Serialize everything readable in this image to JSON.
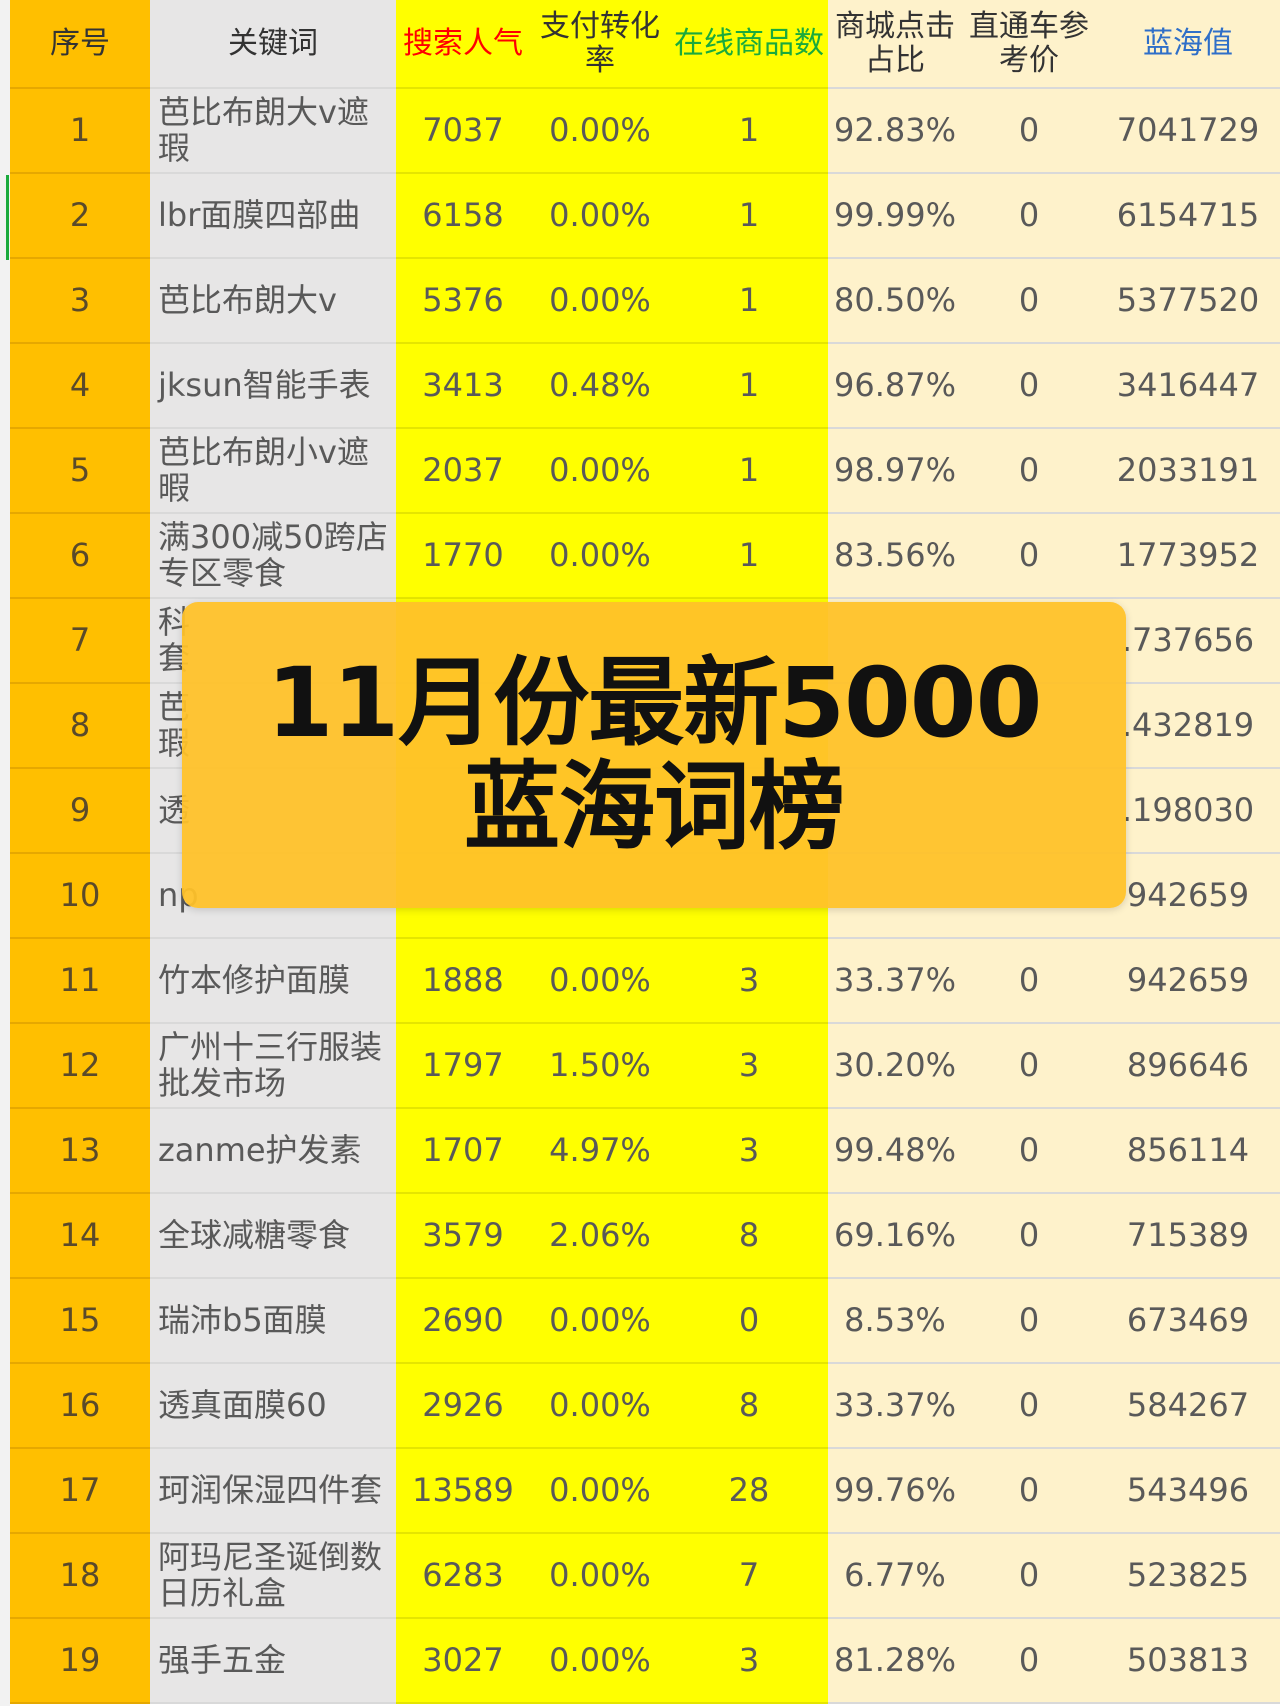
{
  "headers": {
    "seq": "序号",
    "keyword": "关键词",
    "popularity": "搜索人气",
    "conversion": "支付转化率",
    "items": "在线商品数",
    "mall_click": "商城点击占比",
    "ztc_price": "直通车参考价",
    "blue_value": "蓝海值"
  },
  "rows": [
    {
      "seq": "1",
      "keyword": "芭比布朗大v遮瑕",
      "popularity": "7037",
      "conversion": "0.00%",
      "items": "1",
      "mall_click": "92.83%",
      "ztc_price": "0",
      "blue_value": "7041729"
    },
    {
      "seq": "2",
      "keyword": "lbr面膜四部曲",
      "popularity": "6158",
      "conversion": "0.00%",
      "items": "1",
      "mall_click": "99.99%",
      "ztc_price": "0",
      "blue_value": "6154715"
    },
    {
      "seq": "3",
      "keyword": "芭比布朗大v",
      "popularity": "5376",
      "conversion": "0.00%",
      "items": "1",
      "mall_click": "80.50%",
      "ztc_price": "0",
      "blue_value": "5377520"
    },
    {
      "seq": "4",
      "keyword": "jksun智能手表",
      "popularity": "3413",
      "conversion": "0.48%",
      "items": "1",
      "mall_click": "96.87%",
      "ztc_price": "0",
      "blue_value": "3416447"
    },
    {
      "seq": "5",
      "keyword": "芭比布朗小v遮暇",
      "popularity": "2037",
      "conversion": "0.00%",
      "items": "1",
      "mall_click": "98.97%",
      "ztc_price": "0",
      "blue_value": "2033191"
    },
    {
      "seq": "6",
      "keyword": "满300减50跨店专区零食",
      "popularity": "1770",
      "conversion": "0.00%",
      "items": "1",
      "mall_click": "83.56%",
      "ztc_price": "0",
      "blue_value": "1773952"
    },
    {
      "seq": "7",
      "keyword": "科\n套",
      "popularity": "",
      "conversion": "",
      "items": "",
      "mall_click": "",
      "ztc_price": "",
      "blue_value": ".737656"
    },
    {
      "seq": "8",
      "keyword": "芭\n瑕",
      "popularity": "",
      "conversion": "",
      "items": "",
      "mall_click": "",
      "ztc_price": "",
      "blue_value": ".432819"
    },
    {
      "seq": "9",
      "keyword": "透",
      "popularity": "",
      "conversion": "",
      "items": "",
      "mall_click": "",
      "ztc_price": "",
      "blue_value": ".198030"
    },
    {
      "seq": "10",
      "keyword": "np",
      "popularity": "",
      "conversion": "",
      "items": "",
      "mall_click": "",
      "ztc_price": "",
      "blue_value": "942659"
    },
    {
      "seq": "11",
      "keyword": "竹本修护面膜",
      "popularity": "1888",
      "conversion": "0.00%",
      "items": "3",
      "mall_click": "33.37%",
      "ztc_price": "0",
      "blue_value": "942659"
    },
    {
      "seq": "12",
      "keyword": "广州十三行服装批发市场",
      "popularity": "1797",
      "conversion": "1.50%",
      "items": "3",
      "mall_click": "30.20%",
      "ztc_price": "0",
      "blue_value": "896646"
    },
    {
      "seq": "13",
      "keyword": "zanme护发素",
      "popularity": "1707",
      "conversion": "4.97%",
      "items": "3",
      "mall_click": "99.48%",
      "ztc_price": "0",
      "blue_value": "856114"
    },
    {
      "seq": "14",
      "keyword": "全球减糖零食",
      "popularity": "3579",
      "conversion": "2.06%",
      "items": "8",
      "mall_click": "69.16%",
      "ztc_price": "0",
      "blue_value": "715389"
    },
    {
      "seq": "15",
      "keyword": "瑞沛b5面膜",
      "popularity": "2690",
      "conversion": "0.00%",
      "items": "0",
      "mall_click": "8.53%",
      "ztc_price": "0",
      "blue_value": "673469"
    },
    {
      "seq": "16",
      "keyword": "透真面膜60",
      "popularity": "2926",
      "conversion": "0.00%",
      "items": "8",
      "mall_click": "33.37%",
      "ztc_price": "0",
      "blue_value": "584267"
    },
    {
      "seq": "17",
      "keyword": "珂润保湿四件套",
      "popularity": "13589",
      "conversion": "0.00%",
      "items": "28",
      "mall_click": "99.76%",
      "ztc_price": "0",
      "blue_value": "543496"
    },
    {
      "seq": "18",
      "keyword": "阿玛尼圣诞倒数日历礼盒",
      "popularity": "6283",
      "conversion": "0.00%",
      "items": "7",
      "mall_click": "6.77%",
      "ztc_price": "0",
      "blue_value": "523825"
    },
    {
      "seq": "19",
      "keyword": "强手五金",
      "popularity": "3027",
      "conversion": "0.00%",
      "items": "3",
      "mall_click": "81.28%",
      "ztc_price": "0",
      "blue_value": "503813"
    }
  ],
  "banner": {
    "line1": "11月份最新5000",
    "line2": "蓝海词榜"
  },
  "colors": {
    "seq_column": "#ffbf00",
    "keyword_column": "#e7e6e6",
    "highlight_columns": "#ffff00",
    "light_columns": "#fef2cb",
    "banner": "#ffc128"
  }
}
